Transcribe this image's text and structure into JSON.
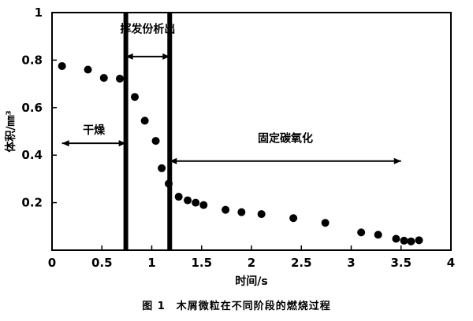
{
  "chart_data": {
    "type": "scatter",
    "caption": "图 1　木屑微粒在不同阶段的燃烧过程",
    "xlabel": "时间/s",
    "ylabel": "体积/㎜³",
    "xlim": [
      0,
      4
    ],
    "ylim": [
      0,
      1
    ],
    "xticks": [
      0,
      0.5,
      1,
      1.5,
      2,
      2.5,
      3,
      3.5,
      4
    ],
    "xtick_labels": [
      "0",
      "0.5",
      "1",
      "1.5",
      "2",
      "2.5",
      "3",
      "3.5",
      "4"
    ],
    "yticks": [
      0.2,
      0.4,
      0.6,
      0.8,
      1
    ],
    "ytick_labels": [
      "0.2",
      "0.4",
      "0.6",
      "0.8",
      "1"
    ],
    "grid": false,
    "points": [
      {
        "x": 0.1,
        "y": 0.775
      },
      {
        "x": 0.36,
        "y": 0.76
      },
      {
        "x": 0.52,
        "y": 0.725
      },
      {
        "x": 0.68,
        "y": 0.722
      },
      {
        "x": 0.83,
        "y": 0.645
      },
      {
        "x": 0.93,
        "y": 0.545
      },
      {
        "x": 1.04,
        "y": 0.46
      },
      {
        "x": 1.1,
        "y": 0.345
      },
      {
        "x": 1.17,
        "y": 0.28
      },
      {
        "x": 1.27,
        "y": 0.225
      },
      {
        "x": 1.36,
        "y": 0.21
      },
      {
        "x": 1.44,
        "y": 0.2
      },
      {
        "x": 1.52,
        "y": 0.19
      },
      {
        "x": 1.74,
        "y": 0.17
      },
      {
        "x": 1.9,
        "y": 0.16
      },
      {
        "x": 2.1,
        "y": 0.152
      },
      {
        "x": 2.42,
        "y": 0.135
      },
      {
        "x": 2.74,
        "y": 0.115
      },
      {
        "x": 3.1,
        "y": 0.075
      },
      {
        "x": 3.27,
        "y": 0.065
      },
      {
        "x": 3.45,
        "y": 0.048
      },
      {
        "x": 3.53,
        "y": 0.04
      },
      {
        "x": 3.6,
        "y": 0.037
      },
      {
        "x": 3.68,
        "y": 0.042
      }
    ],
    "phase_boundaries": [
      0.74,
      1.18
    ],
    "phases": [
      {
        "label": "干燥",
        "x_start": 0.1,
        "x_end": 0.74,
        "y": 0.45,
        "label_y": 0.49
      },
      {
        "label": "挥发份析出",
        "x_start": 0.74,
        "x_end": 1.18,
        "y": 0.815,
        "label_y": 0.915
      },
      {
        "label": "固定碳氧化",
        "x_start": 1.18,
        "x_end": 3.5,
        "y": 0.375,
        "label_y": 0.455
      }
    ]
  }
}
